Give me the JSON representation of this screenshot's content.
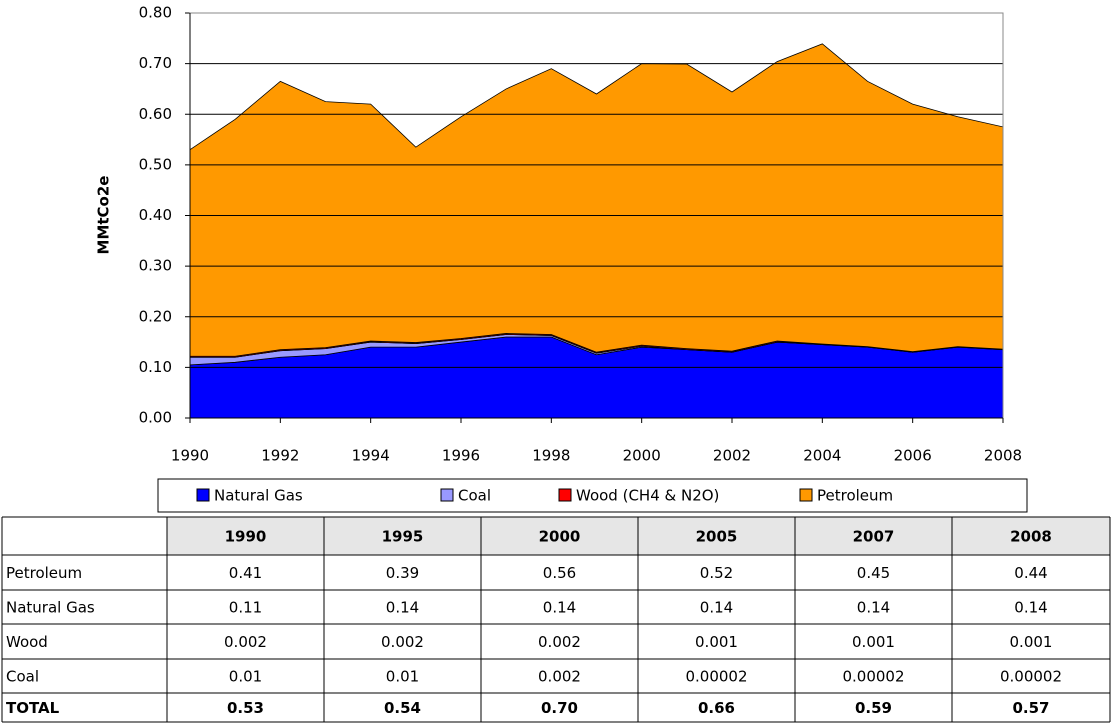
{
  "chart_data": {
    "type": "stacked-area",
    "y_label": "MMtCo2e",
    "x": [
      1990,
      1991,
      1992,
      1993,
      1994,
      1995,
      1996,
      1997,
      1998,
      1999,
      2000,
      2001,
      2002,
      2003,
      2004,
      2005,
      2006,
      2007,
      2008
    ],
    "xlim": [
      1990,
      2008
    ],
    "xticks": [
      1990,
      1992,
      1994,
      1996,
      1998,
      2000,
      2002,
      2004,
      2006,
      2008
    ],
    "ylim": [
      0,
      0.8
    ],
    "yticks": [
      {
        "value": 0,
        "label": "0.00"
      },
      {
        "value": 0.1,
        "label": "0.10"
      },
      {
        "value": 0.2,
        "label": "0.20"
      },
      {
        "value": 0.3,
        "label": "0.30"
      },
      {
        "value": 0.4,
        "label": "0.40"
      },
      {
        "value": 0.5,
        "label": "0.50"
      },
      {
        "value": 0.6,
        "label": "0.60"
      },
      {
        "value": 0.7,
        "label": "0.70"
      },
      {
        "value": 0.8,
        "label": "0.80"
      }
    ],
    "grid": true,
    "legend": "bottom",
    "series": [
      {
        "name": "Natural Gas",
        "color": "#0000ff",
        "values": [
          0.105,
          0.11,
          0.12,
          0.125,
          0.14,
          0.14,
          0.15,
          0.16,
          0.16,
          0.125,
          0.14,
          0.135,
          0.13,
          0.15,
          0.145,
          0.14,
          0.13,
          0.14,
          0.135
        ]
      },
      {
        "name": "Coal",
        "color": "#9999ff",
        "values": [
          0.015,
          0.01,
          0.013,
          0.012,
          0.01,
          0.007,
          0.005,
          0.005,
          0.003,
          0.003,
          0.002,
          2e-05,
          2e-05,
          2e-05,
          2e-05,
          2e-05,
          2e-05,
          2e-05,
          2e-05
        ]
      },
      {
        "name": "Wood (CH4 & N2O)",
        "color": "#ff0000",
        "values": [
          0.002,
          0.002,
          0.002,
          0.002,
          0.002,
          0.002,
          0.002,
          0.002,
          0.002,
          0.002,
          0.002,
          0.002,
          0.002,
          0.002,
          0.001,
          0.001,
          0.001,
          0.001,
          0.001
        ]
      },
      {
        "name": "Petroleum",
        "color": "#ff9900",
        "values": [
          0.408,
          0.468,
          0.53,
          0.486,
          0.468,
          0.386,
          0.438,
          0.483,
          0.525,
          0.51,
          0.556,
          0.562,
          0.512,
          0.552,
          0.593,
          0.524,
          0.489,
          0.454,
          0.439
        ]
      }
    ]
  },
  "table": {
    "columns": [
      "1990",
      "1995",
      "2000",
      "2005",
      "2007",
      "2008"
    ],
    "rows": [
      {
        "label": "Petroleum",
        "values": [
          "0.41",
          "0.39",
          "0.56",
          "0.52",
          "0.45",
          "0.44"
        ]
      },
      {
        "label": "Natural Gas",
        "values": [
          "0.11",
          "0.14",
          "0.14",
          "0.14",
          "0.14",
          "0.14"
        ]
      },
      {
        "label": "Wood",
        "values": [
          "0.002",
          "0.002",
          "0.002",
          "0.001",
          "0.001",
          "0.001"
        ]
      },
      {
        "label": "Coal",
        "values": [
          "0.01",
          "0.01",
          "0.002",
          "0.00002",
          "0.00002",
          "0.00002"
        ]
      },
      {
        "label": "TOTAL",
        "values": [
          "0.53",
          "0.54",
          "0.70",
          "0.66",
          "0.59",
          "0.57"
        ]
      }
    ]
  }
}
